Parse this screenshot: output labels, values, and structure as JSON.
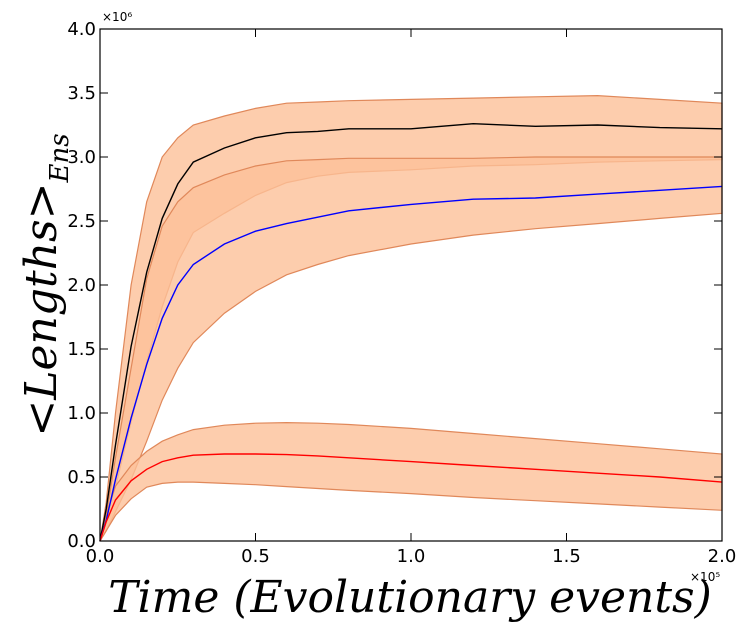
{
  "chart_data": {
    "type": "line",
    "xlabel": "Time (Evolutionary events)",
    "ylabel": "<Lengths>",
    "ylabel_subscript": "Ens",
    "x_multiplier": "×10⁵",
    "y_multiplier": "×10⁶",
    "xlim": [
      0,
      200000
    ],
    "ylim": [
      0,
      4000000
    ],
    "xticks": [
      0,
      50000,
      100000,
      150000,
      200000
    ],
    "xtick_labels": [
      "0.0",
      "0.5",
      "1.0",
      "1.5",
      "2.0"
    ],
    "yticks": [
      0,
      500000,
      1000000,
      1500000,
      2000000,
      2500000,
      3000000,
      3500000,
      4000000
    ],
    "ytick_labels": [
      "0.0",
      "0.5",
      "1.0",
      "1.5",
      "2.0",
      "2.5",
      "3.0",
      "3.5",
      "4.0"
    ],
    "grid": false,
    "band_color": "#fdc199",
    "band_edge_color": "#e0885a",
    "x": [
      0,
      2000,
      5000,
      10000,
      15000,
      20000,
      25000,
      30000,
      40000,
      50000,
      60000,
      70000,
      80000,
      100000,
      120000,
      140000,
      160000,
      180000,
      200000
    ],
    "series": [
      {
        "color": "#000000",
        "values": [
          0,
          250000,
          750000,
          1520000,
          2100000,
          2520000,
          2790000,
          2960000,
          3070000,
          3150000,
          3190000,
          3200000,
          3220000,
          3220000,
          3260000,
          3240000,
          3250000,
          3230000,
          3220000
        ],
        "band_low": [
          0,
          150000,
          420000,
          930000,
          1400000,
          1830000,
          2180000,
          2410000,
          2560000,
          2700000,
          2800000,
          2850000,
          2880000,
          2900000,
          2930000,
          2940000,
          2960000,
          2970000,
          2980000
        ],
        "band_high": [
          0,
          300000,
          1000000,
          2000000,
          2650000,
          3000000,
          3150000,
          3250000,
          3320000,
          3380000,
          3420000,
          3430000,
          3440000,
          3450000,
          3460000,
          3470000,
          3480000,
          3450000,
          3420000
        ]
      },
      {
        "color": "#0000ff",
        "values": [
          0,
          160000,
          480000,
          960000,
          1380000,
          1740000,
          2000000,
          2160000,
          2320000,
          2420000,
          2480000,
          2530000,
          2580000,
          2630000,
          2670000,
          2680000,
          2710000,
          2740000,
          2770000
        ],
        "band_low": [
          0,
          80000,
          230000,
          480000,
          780000,
          1100000,
          1350000,
          1550000,
          1780000,
          1950000,
          2080000,
          2160000,
          2230000,
          2320000,
          2390000,
          2440000,
          2480000,
          2520000,
          2560000
        ],
        "band_high": [
          0,
          200000,
          650000,
          1350000,
          2050000,
          2460000,
          2650000,
          2760000,
          2860000,
          2930000,
          2970000,
          2980000,
          2990000,
          2990000,
          2990000,
          3000000,
          3000000,
          3000000,
          3000000
        ]
      },
      {
        "color": "#ff0000",
        "values": [
          0,
          150000,
          320000,
          470000,
          560000,
          620000,
          650000,
          670000,
          680000,
          680000,
          675000,
          665000,
          650000,
          620000,
          590000,
          560000,
          530000,
          500000,
          460000
        ],
        "band_low": [
          0,
          80000,
          200000,
          330000,
          420000,
          450000,
          460000,
          460000,
          450000,
          440000,
          425000,
          410000,
          395000,
          370000,
          340000,
          315000,
          290000,
          265000,
          240000
        ],
        "band_high": [
          0,
          200000,
          430000,
          590000,
          700000,
          780000,
          830000,
          870000,
          905000,
          920000,
          925000,
          920000,
          910000,
          880000,
          840000,
          800000,
          760000,
          720000,
          680000
        ]
      }
    ]
  }
}
